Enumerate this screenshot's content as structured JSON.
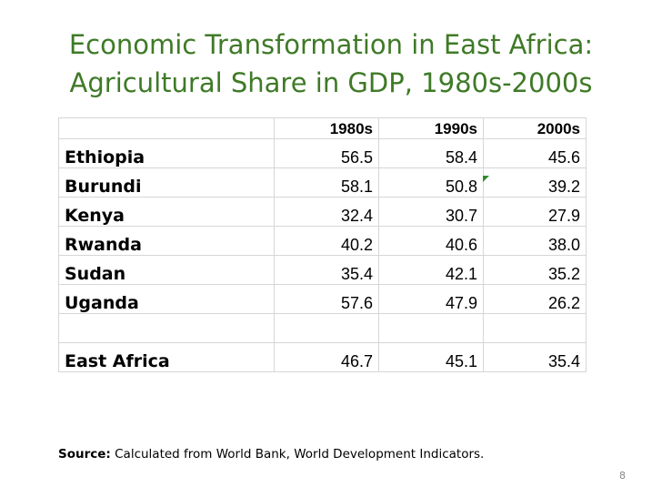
{
  "slide": {
    "title_line1": "Economic Transformation in East Africa:",
    "title_line2": "Agricultural Share in GDP, 1980s-2000s",
    "source_label": "Source:",
    "source_text": " Calculated from World Bank, World Development Indicators.",
    "page_number": "8"
  },
  "table": {
    "headers": [
      "",
      "1980s",
      "1990s",
      "2000s"
    ],
    "rows": [
      {
        "country": "Ethiopia",
        "v1980s": "56.5",
        "v1990s": "58.4",
        "v2000s": "45.6"
      },
      {
        "country": "Burundi",
        "v1980s": "58.1",
        "v1990s": "50.8",
        "v2000s": "39.2"
      },
      {
        "country": "Kenya",
        "v1980s": "32.4",
        "v1990s": "30.7",
        "v2000s": "27.9"
      },
      {
        "country": "Rwanda",
        "v1980s": "40.2",
        "v1990s": "40.6",
        "v2000s": "38.0"
      },
      {
        "country": "Sudan",
        "v1980s": "35.4",
        "v1990s": "42.1",
        "v2000s": "35.2"
      },
      {
        "country": "Uganda",
        "v1980s": "57.6",
        "v1990s": "47.9",
        "v2000s": "26.2"
      }
    ],
    "total": {
      "country": "East Africa",
      "v1980s": "46.7",
      "v1990s": "45.1",
      "v2000s": "35.4"
    }
  },
  "colors": {
    "title": "#3f7a27",
    "grid": "#d6d6d6",
    "comment_marker": "#2e8b2e"
  }
}
